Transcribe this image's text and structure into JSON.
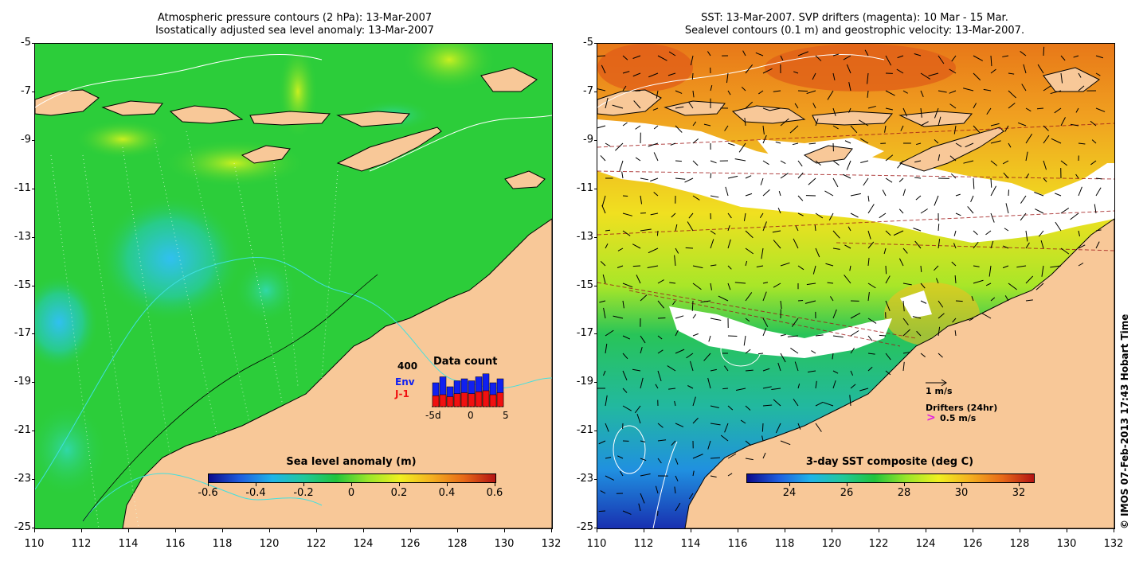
{
  "left_panel": {
    "title_line1": "Atmospheric pressure contours (2 hPa): 13-Mar-2007",
    "title_line2": "Isostatically adjusted sea level anomaly: 13-Mar-2007",
    "colorbar": {
      "label": "Sea level anomaly (m)",
      "range": [
        -0.6,
        0.6
      ],
      "ticks": [
        "-0.6",
        "-0.4",
        "-0.2",
        "0",
        "0.2",
        "0.4",
        "0.6"
      ],
      "colors": [
        "#0b0b8c",
        "#1f5fe0",
        "#20b4e8",
        "#22c89a",
        "#22c43c",
        "#9ae62a",
        "#f0f020",
        "#f4b020",
        "#e86a18",
        "#b41414"
      ]
    },
    "data_count": {
      "title": "Data count",
      "max_label": "400",
      "env_label": "Env",
      "j1_label": "J-1",
      "x_tick_left": "-5d",
      "x_tick_mid": "0",
      "x_tick_right": "5",
      "env_values": [
        240,
        300,
        200,
        260,
        280,
        260,
        300,
        330,
        240,
        280
      ],
      "j1_values": [
        110,
        120,
        100,
        130,
        140,
        130,
        150,
        160,
        120,
        140
      ],
      "env_color": "#1020f0",
      "j1_color": "#f01010"
    }
  },
  "right_panel": {
    "title_line1": "SST: 13-Mar-2007. SVP drifters (magenta): 10 Mar - 15 Mar.",
    "title_line2": "Sealevel contours (0.1 m) and geostrophic velocity: 13-Mar-2007.",
    "colorbar": {
      "label": "3-day SST composite (deg C)",
      "range": [
        22.5,
        32.5
      ],
      "ticks": [
        "24",
        "26",
        "28",
        "30",
        "32"
      ],
      "colors": [
        "#0b0b8c",
        "#1f5fe0",
        "#20b4e8",
        "#22c89a",
        "#22c43c",
        "#9ae62a",
        "#f0f020",
        "#f4b020",
        "#e86a18",
        "#b41414"
      ]
    },
    "velocity_legend": "1 m/s",
    "drifters_legend": "Drifters (24hr)",
    "drifters_speed": "0.5 m/s",
    "drifter_symbol": ">",
    "copyright": "© IMOS 07-Feb-2013 17:43 Hobart Time"
  },
  "axes": {
    "lat_ticks": [
      "-5",
      "-7",
      "-9",
      "-11",
      "-13",
      "-15",
      "-17",
      "-19",
      "-21",
      "-23",
      "-25"
    ],
    "lon_ticks": [
      "110",
      "112",
      "114",
      "116",
      "118",
      "120",
      "122",
      "124",
      "126",
      "128",
      "130",
      "132"
    ],
    "lon_range": [
      110,
      132
    ],
    "lat_range": [
      -25,
      -5
    ]
  },
  "colors": {
    "land": "#f8c898",
    "coast_line": "#000000",
    "ocean_left": "#2ccd3a",
    "ocean_right_warm": "#f0a020",
    "cloud": "#ffffff"
  }
}
